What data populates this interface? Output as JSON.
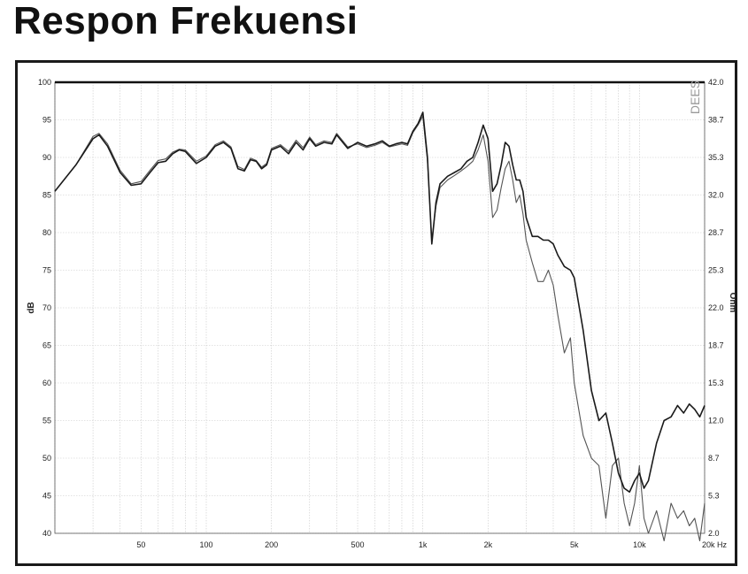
{
  "header": {
    "title": "Respon Frekuensi"
  },
  "chart_data": {
    "type": "line",
    "title": "Respon Frekuensi",
    "xlabel": "",
    "ylabel": "dB",
    "y2label": "Ohm",
    "watermark": "DEES",
    "x_scale": "log",
    "xlim": [
      20,
      20000
    ],
    "ylim": [
      40,
      100
    ],
    "y2lim": [
      2.0,
      42.0
    ],
    "grid": true,
    "x_ticks": [
      {
        "value": 50,
        "label": "50"
      },
      {
        "value": 100,
        "label": "100"
      },
      {
        "value": 200,
        "label": "200"
      },
      {
        "value": 500,
        "label": "500"
      },
      {
        "value": 1000,
        "label": "1k"
      },
      {
        "value": 2000,
        "label": "2k"
      },
      {
        "value": 5000,
        "label": "5k"
      },
      {
        "value": 10000,
        "label": "10k"
      },
      {
        "value": 20000,
        "label": "20k Hz"
      }
    ],
    "y_ticks": [
      "100",
      "95",
      "90",
      "85",
      "80",
      "75",
      "70",
      "65",
      "60",
      "55",
      "50",
      "45",
      "40"
    ],
    "y2_ticks": [
      "42.0",
      "38.7",
      "35.3",
      "32.0",
      "28.7",
      "25.3",
      "22.0",
      "18.7",
      "15.3",
      "12.0",
      "8.7",
      "5.3",
      "2.0"
    ],
    "series": [
      {
        "color": "#1a1a1a",
        "x": [
          20,
          25,
          30,
          32,
          35,
          40,
          45,
          50,
          55,
          60,
          65,
          70,
          75,
          80,
          90,
          100,
          110,
          120,
          130,
          140,
          150,
          160,
          170,
          180,
          190,
          200,
          220,
          240,
          260,
          280,
          300,
          320,
          350,
          380,
          400,
          450,
          500,
          550,
          600,
          650,
          700,
          750,
          800,
          850,
          900,
          950,
          1000,
          1050,
          1100,
          1150,
          1200,
          1300,
          1400,
          1500,
          1600,
          1700,
          1800,
          1900,
          2000,
          2100,
          2200,
          2300,
          2400,
          2500,
          2600,
          2700,
          2800,
          2900,
          3000,
          3200,
          3400,
          3600,
          3800,
          4000,
          4200,
          4500,
          4800,
          5000,
          5500,
          6000,
          6500,
          7000,
          7500,
          8000,
          8500,
          9000,
          9500,
          10000,
          10500,
          11000,
          12000,
          13000,
          14000,
          15000,
          16000,
          17000,
          18000,
          19000,
          20000
        ],
        "values": [
          85.5,
          89,
          92.5,
          93,
          91.5,
          88,
          86.3,
          86.5,
          88,
          89.3,
          89.5,
          90.5,
          91,
          90.8,
          89.2,
          90,
          91.5,
          92,
          91.2,
          88.5,
          88.2,
          89.7,
          89.5,
          88.5,
          89,
          91,
          91.5,
          90.5,
          92,
          91,
          92.5,
          91.5,
          92,
          91.8,
          93,
          91.2,
          92,
          91.5,
          91.8,
          92.2,
          91.5,
          91.8,
          92,
          91.8,
          93.5,
          94.5,
          96,
          90,
          78.5,
          84,
          86.5,
          87.5,
          88,
          88.5,
          89.5,
          90,
          92,
          94.3,
          92.5,
          85.5,
          86.5,
          89,
          92,
          91.5,
          89,
          87,
          87,
          85.5,
          82,
          79.5,
          79.5,
          79,
          79,
          78.5,
          77,
          75.5,
          75,
          74,
          67,
          59,
          55,
          56,
          52,
          48,
          46,
          45.5,
          47,
          48,
          46,
          47,
          52,
          55,
          55.5,
          57,
          56,
          57.2,
          56.5,
          55.5,
          57
        ],
        "name": ""
      },
      {
        "color": "#555555",
        "x": [
          20,
          25,
          30,
          32,
          35,
          40,
          45,
          50,
          55,
          60,
          65,
          70,
          75,
          80,
          90,
          100,
          110,
          120,
          130,
          140,
          150,
          160,
          170,
          180,
          190,
          200,
          220,
          240,
          260,
          280,
          300,
          320,
          350,
          380,
          400,
          450,
          500,
          550,
          600,
          650,
          700,
          750,
          800,
          850,
          900,
          950,
          1000,
          1050,
          1100,
          1150,
          1200,
          1300,
          1400,
          1500,
          1600,
          1700,
          1800,
          1900,
          2000,
          2100,
          2200,
          2300,
          2400,
          2500,
          2600,
          2700,
          2800,
          2900,
          3000,
          3200,
          3400,
          3600,
          3800,
          4000,
          4200,
          4500,
          4800,
          5000,
          5500,
          6000,
          6500,
          7000,
          7500,
          8000,
          8500,
          9000,
          9500,
          10000,
          10500,
          11000,
          12000,
          13000,
          14000,
          15000,
          16000,
          17000,
          18000,
          19000,
          20000
        ],
        "values": [
          85.5,
          89,
          92.8,
          93.2,
          91.8,
          88.3,
          86.5,
          86.8,
          88.3,
          89.6,
          89.8,
          90.7,
          91.1,
          91,
          89.5,
          90.2,
          91.7,
          92.2,
          91.4,
          88.8,
          88.4,
          89.9,
          89.6,
          88.7,
          89.2,
          91.2,
          91.7,
          90.8,
          92.3,
          91.3,
          92.7,
          91.7,
          92.2,
          92,
          93.2,
          91.4,
          91.8,
          91.3,
          91.6,
          92,
          91.4,
          91.6,
          91.8,
          91.6,
          93.3,
          94.3,
          95.5,
          89.5,
          79,
          83.5,
          86,
          87,
          87.6,
          88.2,
          88.8,
          89.5,
          91,
          93,
          89.5,
          82,
          83,
          86,
          88.5,
          89.5,
          87,
          84,
          85,
          82.5,
          79,
          76,
          73.5,
          73.5,
          75,
          73,
          69,
          64,
          66,
          60,
          53,
          50,
          49,
          42,
          49,
          50,
          44,
          41,
          44,
          49,
          42,
          40,
          43,
          39,
          44,
          42,
          43,
          41,
          42,
          39,
          44
        ],
        "name": ""
      }
    ]
  }
}
